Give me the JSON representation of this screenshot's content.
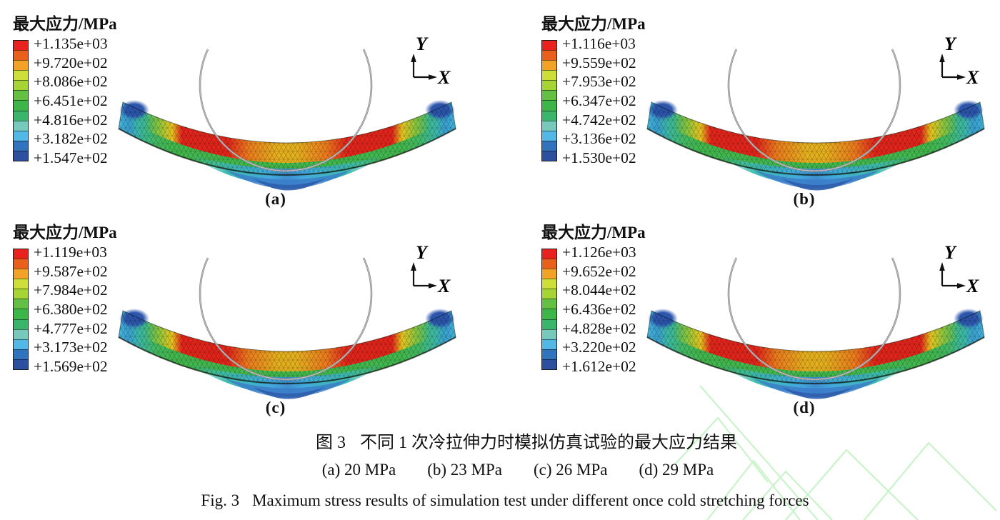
{
  "legend_title": "最大应力/MPa",
  "axis_labels": {
    "x": "X",
    "y": "Y"
  },
  "colorbar_colors": [
    "#e8231f",
    "#e9601c",
    "#f2a227",
    "#cede38",
    "#a6d434",
    "#63c043",
    "#3eb549",
    "#3bb56b",
    "#77cabb",
    "#54b8e6",
    "#3173bd",
    "#2c4f9e"
  ],
  "watermark_color": "#c9f3c9",
  "panels": [
    {
      "label": "(a)",
      "force": "20 MPa",
      "caption": "(a) 20 MPa",
      "legend_values": [
        "+1.135e+03",
        "+9.720e+02",
        "+8.086e+02",
        "+6.451e+02",
        "+4.816e+02",
        "+3.182e+02",
        "+1.547e+02"
      ]
    },
    {
      "label": "(b)",
      "force": "23 MPa",
      "caption": "(b) 23 MPa",
      "legend_values": [
        "+1.116e+03",
        "+9.559e+02",
        "+7.953e+02",
        "+6.347e+02",
        "+4.742e+02",
        "+3.136e+02",
        "+1.530e+02"
      ]
    },
    {
      "label": "(c)",
      "force": "26 MPa",
      "caption": "(c) 26 MPa",
      "legend_values": [
        "+1.119e+03",
        "+9.587e+02",
        "+7.984e+02",
        "+6.380e+02",
        "+4.777e+02",
        "+3.173e+02",
        "+1.569e+02"
      ]
    },
    {
      "label": "(d)",
      "force": "29 MPa",
      "caption": "(d) 29 MPa",
      "legend_values": [
        "+1.126e+03",
        "+9.652e+02",
        "+8.044e+02",
        "+6.436e+02",
        "+4.828e+02",
        "+3.220e+02",
        "+1.612e+02"
      ]
    }
  ],
  "figure": {
    "number_zh": "图 3",
    "title_zh": "不同 1 次冷拉伸力时模拟仿真试验的最大应力结果",
    "number_en": "Fig. 3",
    "title_en": "Maximum stress results of simulation test under different once cold stretching forces"
  }
}
